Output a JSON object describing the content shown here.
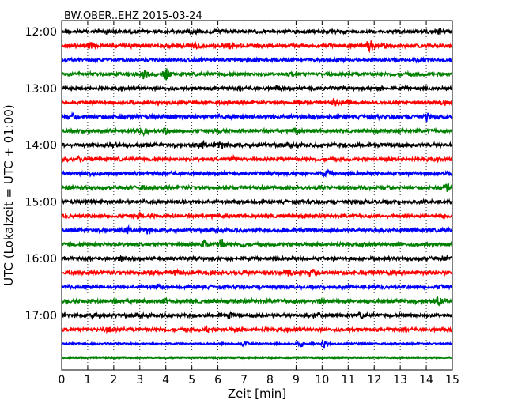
{
  "chart_data": {
    "type": "line",
    "title": "BW.OBER..EHZ 2015-03-24",
    "xlabel": "Zeit  [min]",
    "ylabel": "UTC (Lokalzeit = UTC + 01:00)",
    "xlim": [
      0,
      15
    ],
    "x_ticks": [
      "0",
      "1",
      "2",
      "3",
      "4",
      "5",
      "6",
      "7",
      "8",
      "9",
      "10",
      "11",
      "12",
      "13",
      "14",
      "15"
    ],
    "y_ticks": [
      {
        "label": "12:00",
        "trace": 0
      },
      {
        "label": "13:00",
        "trace": 4
      },
      {
        "label": "14:00",
        "trace": 8
      },
      {
        "label": "15:00",
        "trace": 12
      },
      {
        "label": "16:00",
        "trace": 16
      },
      {
        "label": "17:00",
        "trace": 20
      }
    ],
    "grid": "vertical dotted at every minute",
    "trace_colors": [
      "#000000",
      "#ff0000",
      "#0000ff",
      "#008000"
    ],
    "traces": [
      {
        "start": "12:00",
        "amplitude": 1.0,
        "events": [
          {
            "t": 1.7,
            "a": 1.4
          },
          {
            "t": 6.0,
            "a": 1.3
          },
          {
            "t": 14.5,
            "a": 1.6
          }
        ]
      },
      {
        "start": "12:15",
        "amplitude": 1.1,
        "events": [
          {
            "t": 1.1,
            "a": 1.6
          },
          {
            "t": 5.1,
            "a": 1.5
          },
          {
            "t": 6.5,
            "a": 1.4
          },
          {
            "t": 11.8,
            "a": 2.6
          },
          {
            "t": 12.4,
            "a": 1.3
          }
        ]
      },
      {
        "start": "12:30",
        "amplitude": 0.9,
        "events": [
          {
            "t": 7.4,
            "a": 1.3
          },
          {
            "t": 13.6,
            "a": 1.3
          }
        ]
      },
      {
        "start": "12:45",
        "amplitude": 1.0,
        "events": [
          {
            "t": 3.2,
            "a": 2.2
          },
          {
            "t": 4.0,
            "a": 2.4
          },
          {
            "t": 8.9,
            "a": 1.3
          }
        ]
      },
      {
        "start": "13:00",
        "amplitude": 1.0,
        "events": [
          {
            "t": 8.3,
            "a": 1.3
          },
          {
            "t": 12.3,
            "a": 1.4
          }
        ]
      },
      {
        "start": "13:15",
        "amplitude": 0.9,
        "events": [
          {
            "t": 9.1,
            "a": 1.8
          },
          {
            "t": 10.5,
            "a": 2.0
          },
          {
            "t": 11.0,
            "a": 1.5
          },
          {
            "t": 14.7,
            "a": 1.4
          }
        ]
      },
      {
        "start": "13:30",
        "amplitude": 1.1,
        "events": [
          {
            "t": 0.5,
            "a": 1.5
          },
          {
            "t": 4.2,
            "a": 1.3
          },
          {
            "t": 14.0,
            "a": 1.7
          }
        ]
      },
      {
        "start": "13:45",
        "amplitude": 1.0,
        "events": [
          {
            "t": 3.2,
            "a": 1.7
          },
          {
            "t": 4.0,
            "a": 1.5
          },
          {
            "t": 6.0,
            "a": 1.5
          },
          {
            "t": 9.0,
            "a": 1.6
          }
        ]
      },
      {
        "start": "14:00",
        "amplitude": 1.1,
        "events": [
          {
            "t": 2.0,
            "a": 1.6
          },
          {
            "t": 5.4,
            "a": 1.5
          },
          {
            "t": 6.1,
            "a": 1.7
          }
        ]
      },
      {
        "start": "14:15",
        "amplitude": 1.0,
        "events": [
          {
            "t": 0.7,
            "a": 1.5
          },
          {
            "t": 6.6,
            "a": 1.4
          },
          {
            "t": 12.5,
            "a": 1.3
          }
        ]
      },
      {
        "start": "14:30",
        "amplitude": 1.0,
        "events": [
          {
            "t": 1.1,
            "a": 1.4
          },
          {
            "t": 10.2,
            "a": 1.6
          }
        ]
      },
      {
        "start": "14:45",
        "amplitude": 1.0,
        "events": [
          {
            "t": 0.2,
            "a": 1.4
          },
          {
            "t": 3.1,
            "a": 1.4
          },
          {
            "t": 14.8,
            "a": 1.8
          }
        ]
      },
      {
        "start": "15:00",
        "amplitude": 1.0,
        "events": [
          {
            "t": 4.6,
            "a": 1.4
          },
          {
            "t": 11.0,
            "a": 1.3
          }
        ]
      },
      {
        "start": "15:15",
        "amplitude": 1.0,
        "events": [
          {
            "t": 3.0,
            "a": 1.7
          },
          {
            "t": 13.2,
            "a": 1.2
          }
        ]
      },
      {
        "start": "15:30",
        "amplitude": 1.0,
        "events": [
          {
            "t": 2.5,
            "a": 1.8
          },
          {
            "t": 3.3,
            "a": 1.6
          },
          {
            "t": 8.5,
            "a": 1.3
          }
        ]
      },
      {
        "start": "15:45",
        "amplitude": 1.0,
        "events": [
          {
            "t": 5.5,
            "a": 2.0
          },
          {
            "t": 6.1,
            "a": 2.2
          },
          {
            "t": 7.0,
            "a": 1.4
          }
        ]
      },
      {
        "start": "16:00",
        "amplitude": 1.0,
        "events": [
          {
            "t": 2.3,
            "a": 1.4
          },
          {
            "t": 14.7,
            "a": 1.4
          }
        ]
      },
      {
        "start": "16:15",
        "amplitude": 1.1,
        "events": [
          {
            "t": 3.4,
            "a": 1.6
          },
          {
            "t": 4.4,
            "a": 1.8
          },
          {
            "t": 8.7,
            "a": 1.6
          },
          {
            "t": 9.6,
            "a": 1.6
          }
        ]
      },
      {
        "start": "16:30",
        "amplitude": 1.0,
        "events": [
          {
            "t": 0.9,
            "a": 1.4
          },
          {
            "t": 3.7,
            "a": 1.4
          },
          {
            "t": 14.5,
            "a": 1.5
          }
        ]
      },
      {
        "start": "16:45",
        "amplitude": 1.1,
        "events": [
          {
            "t": 4.0,
            "a": 1.4
          },
          {
            "t": 10.0,
            "a": 1.5
          },
          {
            "t": 14.5,
            "a": 2.0
          }
        ]
      },
      {
        "start": "17:00",
        "amplitude": 1.0,
        "events": [
          {
            "t": 1.3,
            "a": 1.7
          },
          {
            "t": 6.5,
            "a": 1.4
          },
          {
            "t": 9.8,
            "a": 1.5
          },
          {
            "t": 11.5,
            "a": 1.4
          }
        ]
      },
      {
        "start": "17:15",
        "amplitude": 1.0,
        "events": [
          {
            "t": 1.8,
            "a": 1.5
          },
          {
            "t": 5.6,
            "a": 1.4
          },
          {
            "t": 6.7,
            "a": 1.5
          }
        ]
      },
      {
        "start": "17:30",
        "amplitude": 0.5,
        "events": [
          {
            "t": 7.0,
            "a": 2.2
          },
          {
            "t": 9.2,
            "a": 2.6
          },
          {
            "t": 10.1,
            "a": 2.8
          }
        ]
      },
      {
        "start": "17:45",
        "amplitude": 0.3,
        "events": []
      }
    ]
  }
}
